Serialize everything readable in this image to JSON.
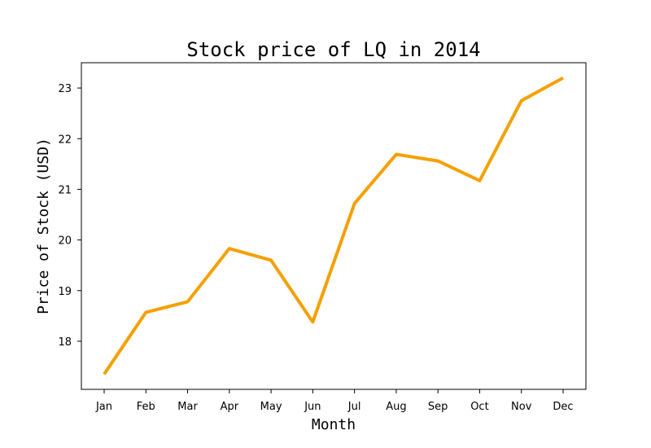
{
  "chart_data": {
    "type": "line",
    "title": "Stock price of LQ in 2014",
    "xlabel": "Month",
    "ylabel": "Price of Stock (USD)",
    "categories": [
      "Jan",
      "Feb",
      "Mar",
      "Apr",
      "May",
      "Jun",
      "Jul",
      "Aug",
      "Sep",
      "Oct",
      "Nov",
      "Dec"
    ],
    "series": [
      {
        "values": [
          17.35,
          18.57,
          18.78,
          19.83,
          19.6,
          18.38,
          20.72,
          21.69,
          21.56,
          21.17,
          22.75,
          23.2
        ]
      }
    ],
    "yticks": [
      18,
      19,
      20,
      21,
      22,
      23
    ],
    "ylim": [
      17.05,
      23.5
    ],
    "line_color": "#f5a000",
    "grid": false,
    "legend": "none"
  }
}
